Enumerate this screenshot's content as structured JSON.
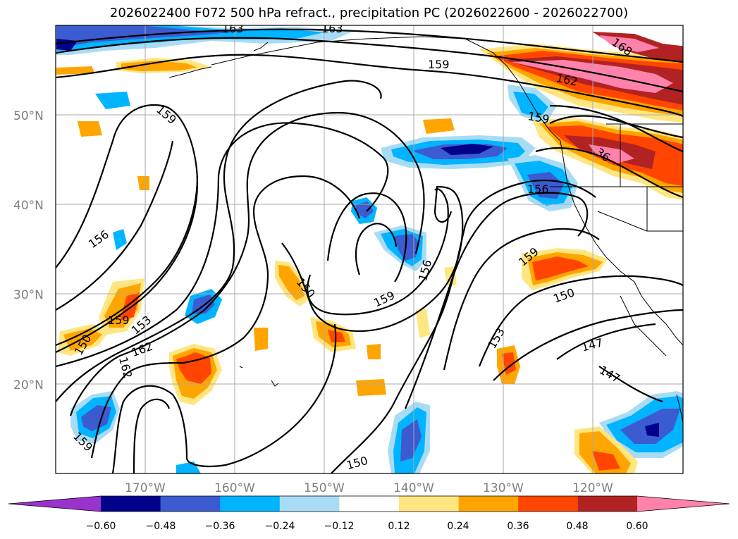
{
  "title": "2026022400 F072 500 hPa refract., precipitation PC (2026022600 - 2026022700)",
  "map": {
    "lon_labels": [
      "170°W",
      "160°W",
      "150°W",
      "140°W",
      "130°W",
      "120°W"
    ],
    "lat_labels": [
      "50°N",
      "40°N",
      "30°N",
      "20°N"
    ],
    "contour_labels": [
      {
        "text": "163"
      },
      {
        "text": "163"
      },
      {
        "text": "159"
      },
      {
        "text": "159"
      },
      {
        "text": "162"
      },
      {
        "text": "168"
      },
      {
        "text": "159"
      },
      {
        "text": "156"
      },
      {
        "text": "156"
      },
      {
        "text": "159"
      },
      {
        "text": "150"
      },
      {
        "text": "156"
      },
      {
        "text": "159"
      },
      {
        "text": "150"
      },
      {
        "text": "153"
      },
      {
        "text": "162"
      },
      {
        "text": "162"
      },
      {
        "text": "150"
      },
      {
        "text": "159"
      },
      {
        "text": "153"
      },
      {
        "text": "147"
      },
      {
        "text": "147"
      },
      {
        "text": "150"
      },
      {
        "text": "159"
      },
      {
        "text": "36"
      }
    ]
  },
  "colorbar": {
    "colors": [
      "#9933cc",
      "#00008b",
      "#3b5bd0",
      "#00b4ff",
      "#a8dcf5",
      "#ffffff",
      "#ffe680",
      "#ffa500",
      "#ff4500",
      "#b22222",
      "#ff82ab"
    ],
    "ticks": [
      "−0.60",
      "−0.48",
      "−0.36",
      "−0.24",
      "−0.12",
      "0.12",
      "0.24",
      "0.36",
      "0.48",
      "0.60"
    ]
  }
}
